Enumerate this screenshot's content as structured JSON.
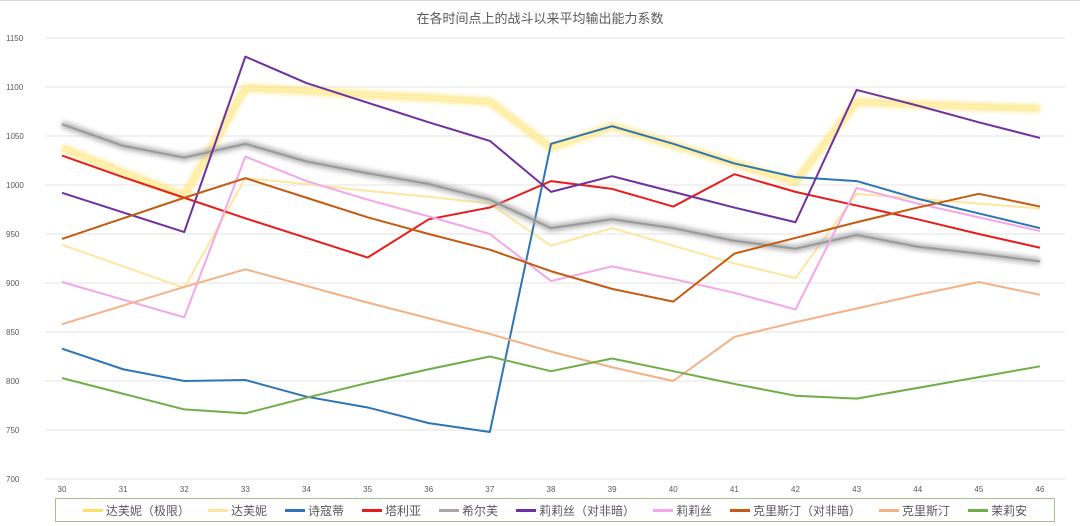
{
  "chart_data": {
    "type": "line",
    "title": "在各时间点上的战斗以来平均输出能力系数",
    "xlabel": "",
    "ylabel": "",
    "x": [
      30,
      31,
      32,
      33,
      34,
      35,
      36,
      37,
      38,
      39,
      40,
      41,
      42,
      43,
      44,
      45,
      46
    ],
    "ylim": [
      700,
      1150
    ],
    "yticks": [
      700,
      750,
      800,
      850,
      900,
      950,
      1000,
      1050,
      1100,
      1150
    ],
    "grid": true,
    "legend": "bottom",
    "series": [
      {
        "name": "达芙妮（极限）",
        "color": "#ffe066",
        "glow": true,
        "values": [
          1038,
          1013,
          989,
          1099,
          1096,
          1092,
          1089,
          1085,
          1038,
          1060,
          1041,
          1022,
          1003,
          1085,
          1082,
          1080,
          1078
        ]
      },
      {
        "name": "达芙妮",
        "color": "#fde6a0",
        "glow": false,
        "values": [
          939,
          917,
          895,
          1007,
          1001,
          994,
          988,
          981,
          938,
          956,
          938,
          920,
          905,
          991,
          986,
          981,
          976
        ]
      },
      {
        "name": "诗寇蒂",
        "color": "#2e75b6",
        "glow": false,
        "values": [
          833,
          812,
          800,
          801,
          784,
          773,
          757,
          748,
          1042,
          1060,
          1042,
          1022,
          1008,
          1004,
          986,
          971,
          956
        ]
      },
      {
        "name": "塔利亚",
        "color": "#e81c1c",
        "glow": false,
        "values": [
          1030,
          1008,
          987,
          966,
          946,
          926,
          965,
          977,
          1004,
          996,
          978,
          1011,
          993,
          979,
          965,
          950,
          936
        ]
      },
      {
        "name": "希尔芙",
        "color": "#a6a6a6",
        "glow": true,
        "values": [
          1062,
          1040,
          1028,
          1042,
          1024,
          1012,
          1001,
          985,
          956,
          965,
          956,
          943,
          935,
          949,
          937,
          930,
          922
        ]
      },
      {
        "name": "莉莉丝（对非暗）",
        "color": "#7030a0",
        "glow": false,
        "values": [
          992,
          972,
          952,
          1131,
          1104,
          1084,
          1064,
          1045,
          993,
          1009,
          993,
          977,
          962,
          1097,
          1081,
          1064,
          1048
        ]
      },
      {
        "name": "莉莉丝",
        "color": "#f4a6e8",
        "glow": false,
        "values": [
          901,
          883,
          865,
          1029,
          1004,
          985,
          968,
          950,
          902,
          917,
          904,
          890,
          873,
          997,
          981,
          967,
          953
        ]
      },
      {
        "name": "克里斯汀（对非暗）",
        "color": "#c55a11",
        "glow": false,
        "values": [
          945,
          966,
          987,
          1007,
          987,
          967,
          950,
          934,
          912,
          894,
          881,
          930,
          946,
          962,
          977,
          991,
          978
        ]
      },
      {
        "name": "克里斯汀",
        "color": "#f4b183",
        "glow": false,
        "values": [
          858,
          877,
          896,
          914,
          897,
          880,
          864,
          848,
          830,
          814,
          800,
          845,
          860,
          874,
          888,
          901,
          888
        ]
      },
      {
        "name": "茉莉安",
        "color": "#70ad47",
        "glow": false,
        "values": [
          803,
          787,
          771,
          767,
          783,
          798,
          812,
          825,
          810,
          823,
          810,
          797,
          785,
          782,
          793,
          804,
          815
        ]
      }
    ]
  }
}
